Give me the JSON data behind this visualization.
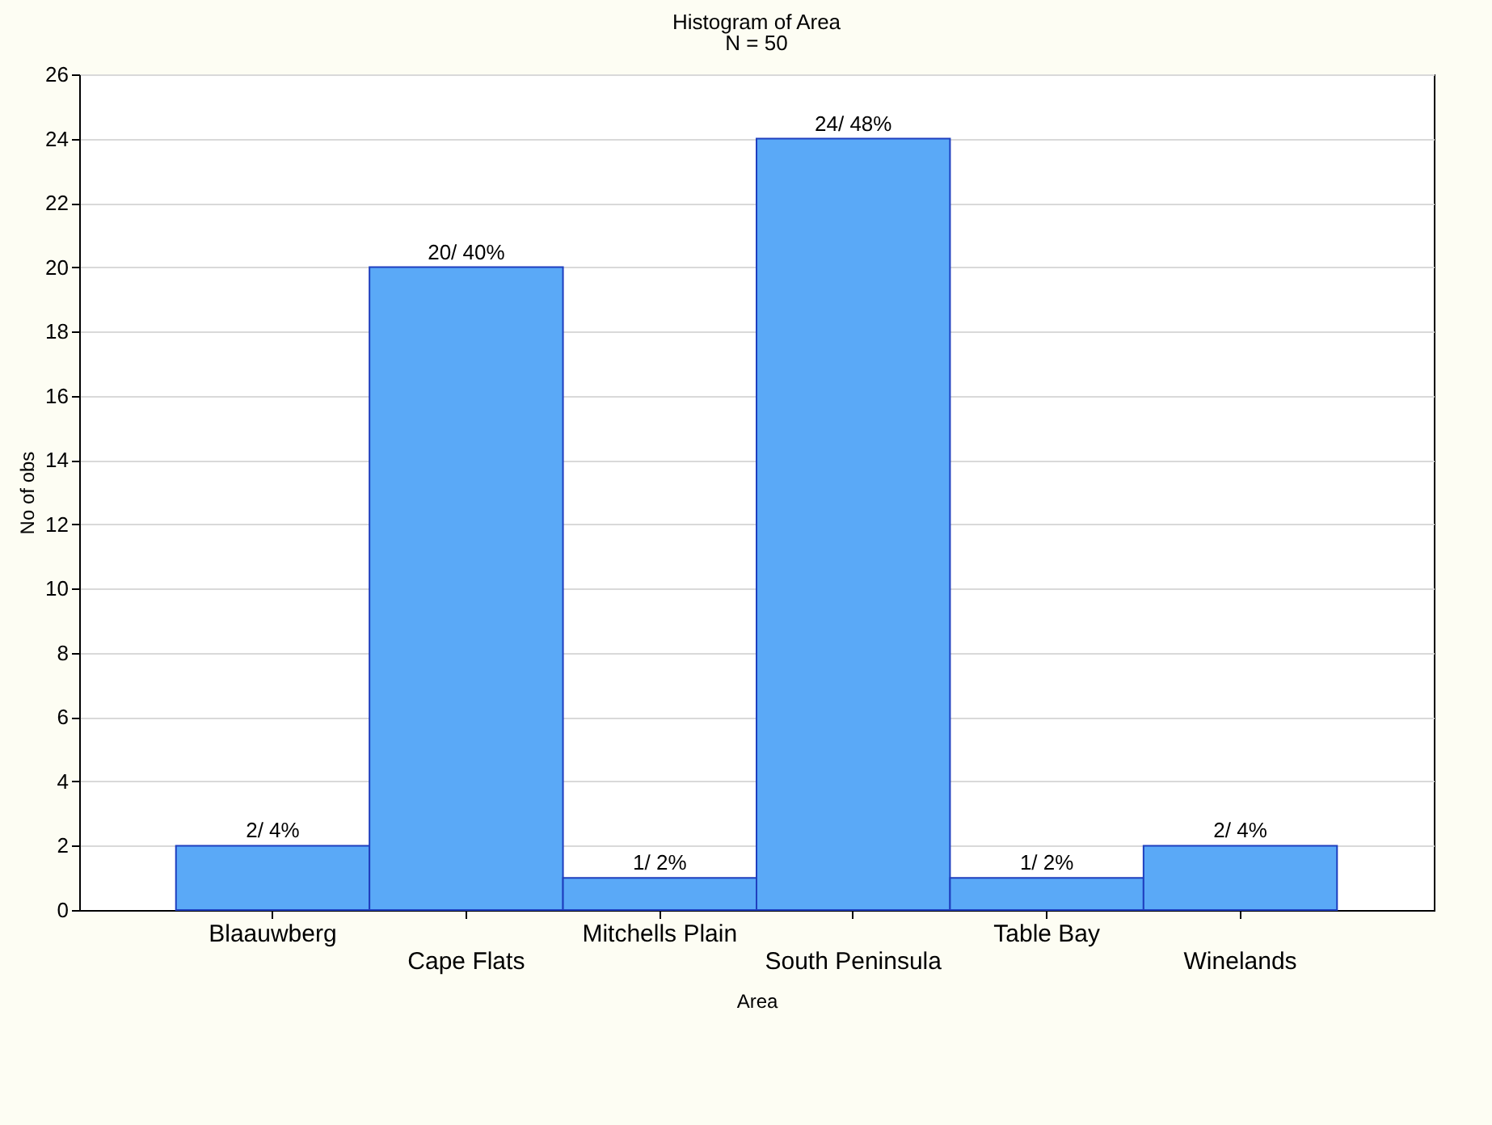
{
  "chart_data": {
    "type": "bar",
    "title": "Histogram of Area",
    "subtitle": "N = 50",
    "xlabel": "Area",
    "ylabel": "No of obs",
    "categories": [
      "Blaauwberg",
      "Cape Flats",
      "Mitchells Plain",
      "South Peninsula",
      "Table Bay",
      "Winelands"
    ],
    "values": [
      2,
      20,
      1,
      24,
      1,
      2
    ],
    "value_labels": [
      "2/ 4%",
      "20/ 40%",
      "1/ 2%",
      "24/ 48%",
      "1/ 2%",
      "2/ 4%"
    ],
    "color": "#5aa9f7",
    "ylim": [
      0,
      26
    ],
    "yticks": [
      0,
      2,
      4,
      6,
      8,
      10,
      12,
      14,
      16,
      18,
      20,
      22,
      24,
      26
    ],
    "grid": "y"
  }
}
